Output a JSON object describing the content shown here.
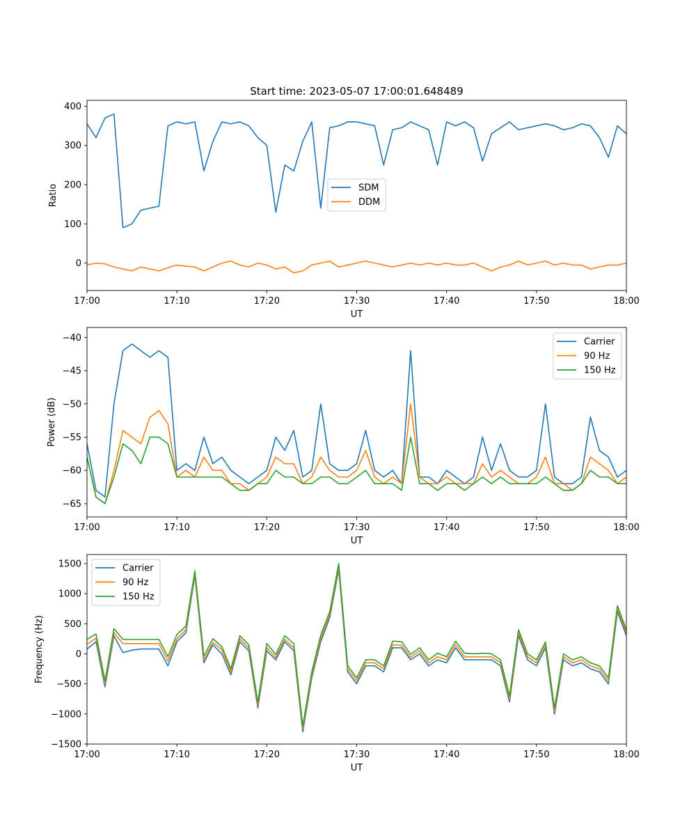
{
  "figure_title": "Start time: 2023-05-07 17:00:01.648489",
  "chart_data": [
    {
      "type": "line",
      "title": "Start time: 2023-05-07 17:00:01.648489",
      "xlabel": "UT",
      "ylabel": "Ratio",
      "xlim": [
        "17:00",
        "18:00"
      ],
      "ylim": [
        -70,
        415
      ],
      "xticks": [
        "17:00",
        "17:10",
        "17:20",
        "17:30",
        "17:40",
        "17:50",
        "18:00"
      ],
      "yticks": [
        0,
        100,
        200,
        300,
        400
      ],
      "grid": false,
      "legend_position": "center",
      "x": [
        "17:00",
        "17:01",
        "17:02",
        "17:03",
        "17:04",
        "17:05",
        "17:06",
        "17:07",
        "17:08",
        "17:09",
        "17:10",
        "17:11",
        "17:12",
        "17:13",
        "17:14",
        "17:15",
        "17:16",
        "17:17",
        "17:18",
        "17:19",
        "17:20",
        "17:21",
        "17:22",
        "17:23",
        "17:24",
        "17:25",
        "17:26",
        "17:27",
        "17:28",
        "17:29",
        "17:30",
        "17:31",
        "17:32",
        "17:33",
        "17:34",
        "17:35",
        "17:36",
        "17:37",
        "17:38",
        "17:39",
        "17:40",
        "17:41",
        "17:42",
        "17:43",
        "17:44",
        "17:45",
        "17:46",
        "17:47",
        "17:48",
        "17:49",
        "17:50",
        "17:51",
        "17:52",
        "17:53",
        "17:54",
        "17:55",
        "17:56",
        "17:57",
        "17:58",
        "17:59",
        "18:00"
      ],
      "series": [
        {
          "name": "SDM",
          "color": "#1f77b4",
          "values": [
            355,
            320,
            370,
            380,
            90,
            100,
            135,
            140,
            145,
            350,
            360,
            355,
            360,
            235,
            310,
            360,
            355,
            360,
            350,
            320,
            300,
            130,
            250,
            235,
            310,
            360,
            140,
            345,
            350,
            360,
            360,
            355,
            350,
            250,
            340,
            345,
            360,
            350,
            340,
            250,
            360,
            350,
            360,
            345,
            260,
            330,
            345,
            360,
            340,
            345,
            350,
            355,
            350,
            340,
            345,
            355,
            350,
            320,
            270,
            350,
            330
          ]
        },
        {
          "name": "DDM",
          "color": "#ff7f0e",
          "values": [
            -5,
            0,
            -2,
            -10,
            -15,
            -20,
            -10,
            -15,
            -20,
            -12,
            -5,
            -8,
            -10,
            -20,
            -10,
            0,
            5,
            -5,
            -10,
            0,
            -5,
            -15,
            -10,
            -25,
            -20,
            -5,
            0,
            5,
            -10,
            -5,
            0,
            5,
            0,
            -5,
            -10,
            -5,
            0,
            -5,
            0,
            -5,
            0,
            -5,
            -5,
            0,
            -10,
            -20,
            -10,
            -5,
            5,
            -5,
            0,
            5,
            -5,
            0,
            -5,
            -5,
            -15,
            -10,
            -5,
            -5,
            0
          ]
        }
      ]
    },
    {
      "type": "line",
      "xlabel": "UT",
      "ylabel": "Power (dB)",
      "xlim": [
        "17:00",
        "18:00"
      ],
      "ylim": [
        -67,
        -38.5
      ],
      "xticks": [
        "17:00",
        "17:10",
        "17:20",
        "17:30",
        "17:40",
        "17:50",
        "18:00"
      ],
      "yticks": [
        -65,
        -60,
        -55,
        -50,
        -45,
        -40
      ],
      "grid": false,
      "legend_position": "top-right",
      "x": [
        "17:00",
        "17:01",
        "17:02",
        "17:03",
        "17:04",
        "17:05",
        "17:06",
        "17:07",
        "17:08",
        "17:09",
        "17:10",
        "17:11",
        "17:12",
        "17:13",
        "17:14",
        "17:15",
        "17:16",
        "17:17",
        "17:18",
        "17:19",
        "17:20",
        "17:21",
        "17:22",
        "17:23",
        "17:24",
        "17:25",
        "17:26",
        "17:27",
        "17:28",
        "17:29",
        "17:30",
        "17:31",
        "17:32",
        "17:33",
        "17:34",
        "17:35",
        "17:36",
        "17:37",
        "17:38",
        "17:39",
        "17:40",
        "17:41",
        "17:42",
        "17:43",
        "17:44",
        "17:45",
        "17:46",
        "17:47",
        "17:48",
        "17:49",
        "17:50",
        "17:51",
        "17:52",
        "17:53",
        "17:54",
        "17:55",
        "17:56",
        "17:57",
        "17:58",
        "17:59",
        "18:00"
      ],
      "series": [
        {
          "name": "Carrier",
          "color": "#1f77b4",
          "values": [
            -56,
            -63,
            -64,
            -50,
            -42,
            -41,
            -42,
            -43,
            -42,
            -43,
            -60,
            -59,
            -60,
            -55,
            -59,
            -58,
            -60,
            -61,
            -62,
            -61,
            -60,
            -55,
            -57,
            -54,
            -61,
            -60,
            -50,
            -59,
            -60,
            -60,
            -59,
            -54,
            -60,
            -61,
            -60,
            -62,
            -42,
            -61,
            -61,
            -62,
            -60,
            -61,
            -62,
            -61,
            -55,
            -60,
            -56,
            -60,
            -61,
            -61,
            -60,
            -50,
            -61,
            -62,
            -62,
            -61,
            -52,
            -57,
            -58,
            -61,
            -60
          ]
        },
        {
          "name": "90 Hz",
          "color": "#ff7f0e",
          "values": [
            -58,
            -64,
            -65,
            -60,
            -54,
            -55,
            -56,
            -52,
            -51,
            -53,
            -61,
            -60,
            -61,
            -58,
            -60,
            -60,
            -62,
            -62,
            -63,
            -62,
            -61,
            -58,
            -59,
            -59,
            -62,
            -61,
            -58,
            -60,
            -61,
            -61,
            -60,
            -57,
            -61,
            -62,
            -61,
            -62,
            -50,
            -61,
            -62,
            -62,
            -61,
            -62,
            -62,
            -62,
            -59,
            -61,
            -60,
            -61,
            -62,
            -62,
            -61,
            -58,
            -62,
            -62,
            -63,
            -62,
            -58,
            -59,
            -60,
            -62,
            -61
          ]
        },
        {
          "name": "150 Hz",
          "color": "#2ca02c",
          "values": [
            -58,
            -64,
            -65,
            -61,
            -56,
            -57,
            -59,
            -55,
            -55,
            -56,
            -61,
            -61,
            -61,
            -61,
            -61,
            -61,
            -62,
            -63,
            -63,
            -62,
            -62,
            -60,
            -61,
            -61,
            -62,
            -62,
            -61,
            -61,
            -62,
            -62,
            -61,
            -60,
            -62,
            -62,
            -62,
            -63,
            -55,
            -62,
            -62,
            -63,
            -62,
            -62,
            -63,
            -62,
            -61,
            -62,
            -61,
            -62,
            -62,
            -62,
            -62,
            -61,
            -62,
            -63,
            -63,
            -62,
            -60,
            -61,
            -61,
            -62,
            -62
          ]
        }
      ]
    },
    {
      "type": "line",
      "xlabel": "UT",
      "ylabel": "Frequency (Hz)",
      "xlim": [
        "17:00",
        "18:00"
      ],
      "ylim": [
        -1500,
        1650
      ],
      "xticks": [
        "17:00",
        "17:10",
        "17:20",
        "17:30",
        "17:40",
        "17:50",
        "18:00"
      ],
      "yticks": [
        -1500,
        -1000,
        -500,
        0,
        500,
        1000,
        1500
      ],
      "grid": false,
      "legend_position": "top-left",
      "x": [
        "17:00",
        "17:01",
        "17:02",
        "17:03",
        "17:04",
        "17:05",
        "17:06",
        "17:07",
        "17:08",
        "17:09",
        "17:10",
        "17:11",
        "17:12",
        "17:13",
        "17:14",
        "17:15",
        "17:16",
        "17:17",
        "17:18",
        "17:19",
        "17:20",
        "17:21",
        "17:22",
        "17:23",
        "17:24",
        "17:25",
        "17:26",
        "17:27",
        "17:28",
        "17:29",
        "17:30",
        "17:31",
        "17:32",
        "17:33",
        "17:34",
        "17:35",
        "17:36",
        "17:37",
        "17:38",
        "17:39",
        "17:40",
        "17:41",
        "17:42",
        "17:43",
        "17:44",
        "17:45",
        "17:46",
        "17:47",
        "17:48",
        "17:49",
        "17:50",
        "17:51",
        "17:52",
        "17:53",
        "17:54",
        "17:55",
        "17:56",
        "17:57",
        "17:58",
        "17:59",
        "18:00"
      ],
      "series": [
        {
          "name": "Carrier",
          "color": "#1f77b4",
          "values": [
            80,
            200,
            -550,
            300,
            20,
            60,
            80,
            80,
            80,
            -200,
            200,
            350,
            1300,
            -150,
            150,
            0,
            -350,
            200,
            50,
            -900,
            50,
            -100,
            200,
            50,
            -1300,
            -400,
            200,
            600,
            1400,
            -300,
            -500,
            -200,
            -200,
            -300,
            100,
            100,
            -100,
            0,
            -200,
            -100,
            -150,
            100,
            -100,
            -100,
            -100,
            -100,
            -200,
            -800,
            300,
            -100,
            -200,
            100,
            -1000,
            -100,
            -200,
            -150,
            -250,
            -300,
            -500,
            700,
            300
          ]
        },
        {
          "name": "90 Hz",
          "color": "#ff7f0e",
          "values": [
            160,
            260,
            -500,
            350,
            170,
            170,
            170,
            170,
            170,
            -120,
            250,
            400,
            1340,
            -100,
            190,
            70,
            -300,
            250,
            100,
            -850,
            100,
            -60,
            240,
            100,
            -1250,
            -350,
            250,
            650,
            1450,
            -250,
            -450,
            -150,
            -150,
            -250,
            150,
            140,
            -60,
            50,
            -150,
            -50,
            -100,
            150,
            -50,
            -50,
            -50,
            -50,
            -150,
            -750,
            350,
            -50,
            -150,
            150,
            -950,
            -50,
            -150,
            -100,
            -200,
            -250,
            -450,
            750,
            350
          ]
        },
        {
          "name": "150 Hz",
          "color": "#2ca02c",
          "values": [
            240,
            330,
            -450,
            420,
            240,
            240,
            240,
            240,
            240,
            -50,
            320,
            460,
            1380,
            -40,
            250,
            120,
            -250,
            300,
            150,
            -800,
            170,
            -10,
            300,
            170,
            -1200,
            -300,
            310,
            700,
            1500,
            -200,
            -400,
            -100,
            -100,
            -200,
            210,
            200,
            -10,
            100,
            -100,
            10,
            -50,
            210,
            10,
            0,
            10,
            0,
            -100,
            -700,
            400,
            0,
            -100,
            200,
            -900,
            0,
            -100,
            -50,
            -150,
            -200,
            -400,
            800,
            400
          ]
        }
      ]
    }
  ]
}
